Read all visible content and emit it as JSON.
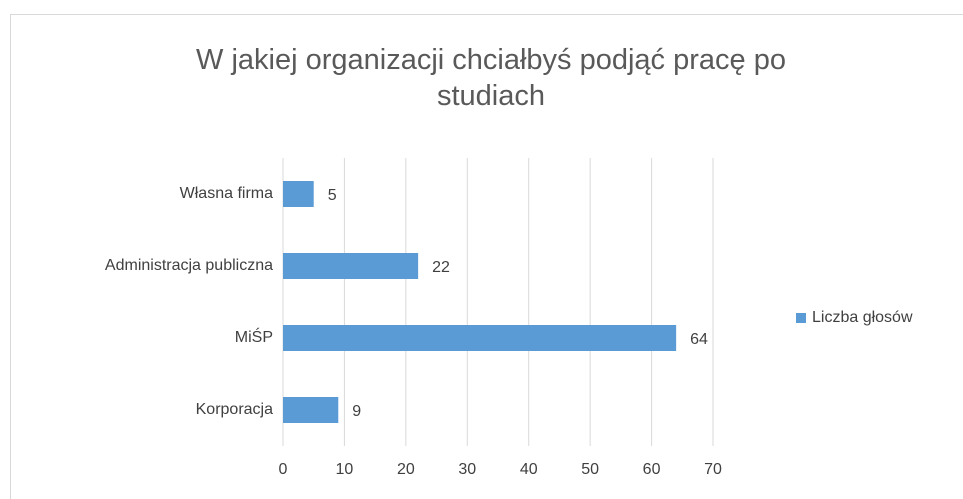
{
  "chart_data": {
    "type": "bar",
    "orientation": "horizontal",
    "title": "W jakiej organizacji chciałbyś podjąć pracę po studiach",
    "categories": [
      "Własna firma",
      "Administracja publiczna",
      "MiŚP",
      "Korporacja"
    ],
    "series": [
      {
        "name": "Liczba głosów",
        "color": "#5b9bd5",
        "values": [
          5,
          22,
          64,
          9
        ]
      }
    ],
    "xlim": [
      0,
      70
    ],
    "xticks": [
      0,
      10,
      20,
      30,
      40,
      50,
      60,
      70
    ],
    "grid": true,
    "legend": "right"
  }
}
